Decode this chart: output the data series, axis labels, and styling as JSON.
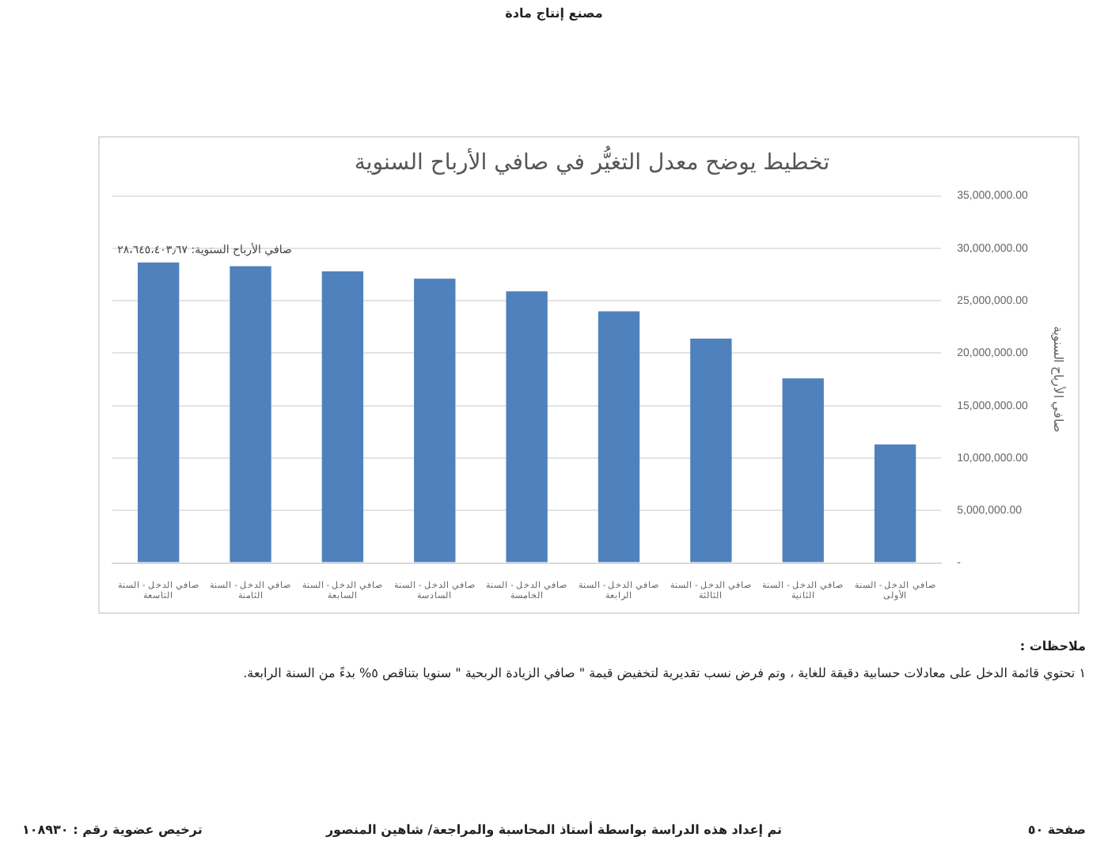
{
  "chart_data": {
    "type": "bar",
    "title": "تخطيط يوضح معدل التغيُّر في صافي الأرباح السنوية",
    "ylabel": "صافي الأرباح السنوية",
    "categories": [
      "صافي الدخل - السنة التاسعة",
      "صافي الدخل - السنة الثامنة",
      "صافي الدخل - السنة السابعة",
      "صافي الدخل - السنة السادسة",
      "صافي الدخل - السنة الخامسة",
      "صافي الدخل - السنة الرابعة",
      "صافي الدخل - السنة الثالثة",
      "صافي الدخل - السنة الثانية",
      "صافي الدخل - السنة الأولى"
    ],
    "values": [
      28645403.67,
      28300000,
      27800000,
      27100000,
      25900000,
      24000000,
      21400000,
      17600000,
      11300000
    ],
    "color": "#4f81bd",
    "ylim": [
      0,
      35000000
    ],
    "yticks": [
      {
        "value": 0,
        "label": "-"
      },
      {
        "value": 5000000,
        "label": "5,000,000.00"
      },
      {
        "value": 10000000,
        "label": "10,000,000.00"
      },
      {
        "value": 15000000,
        "label": "15,000,000.00"
      },
      {
        "value": 20000000,
        "label": "20,000,000.00"
      },
      {
        "value": 25000000,
        "label": "25,000,000.00"
      },
      {
        "value": 30000000,
        "label": "30,000,000.00"
      },
      {
        "value": 35000000,
        "label": "35,000,000.00"
      }
    ],
    "grid": "y",
    "legend": false,
    "annotations": [
      {
        "text": "صافي الأرباح السنوية: ٢٨،٦٤٥،٤٠٣٫٦٧",
        "x": "صافي الدخل - السنة التاسعة",
        "y": 28645403.67
      },
      "مصنع إنتاج مادة",
      "ملاحظات :",
      "١   تحتوي قائمة الدخل على معادلات حسابية دقيقة للغاية ، وتم فرض نسب تقديرية لتخفيض قيمة \" صافي الزيادة الربحية \" سنويا بتناقص ٥% بدءً من السنة الرابعة.",
      "صفحة ٥٠",
      "تم إعداد هذه الدراسة بواسطة أستاذ المحاسبة والمراجعة/ شاهين المنصور",
      "ترخيص عضوية رقم : ١٠٨٩٣٠"
    ]
  }
}
